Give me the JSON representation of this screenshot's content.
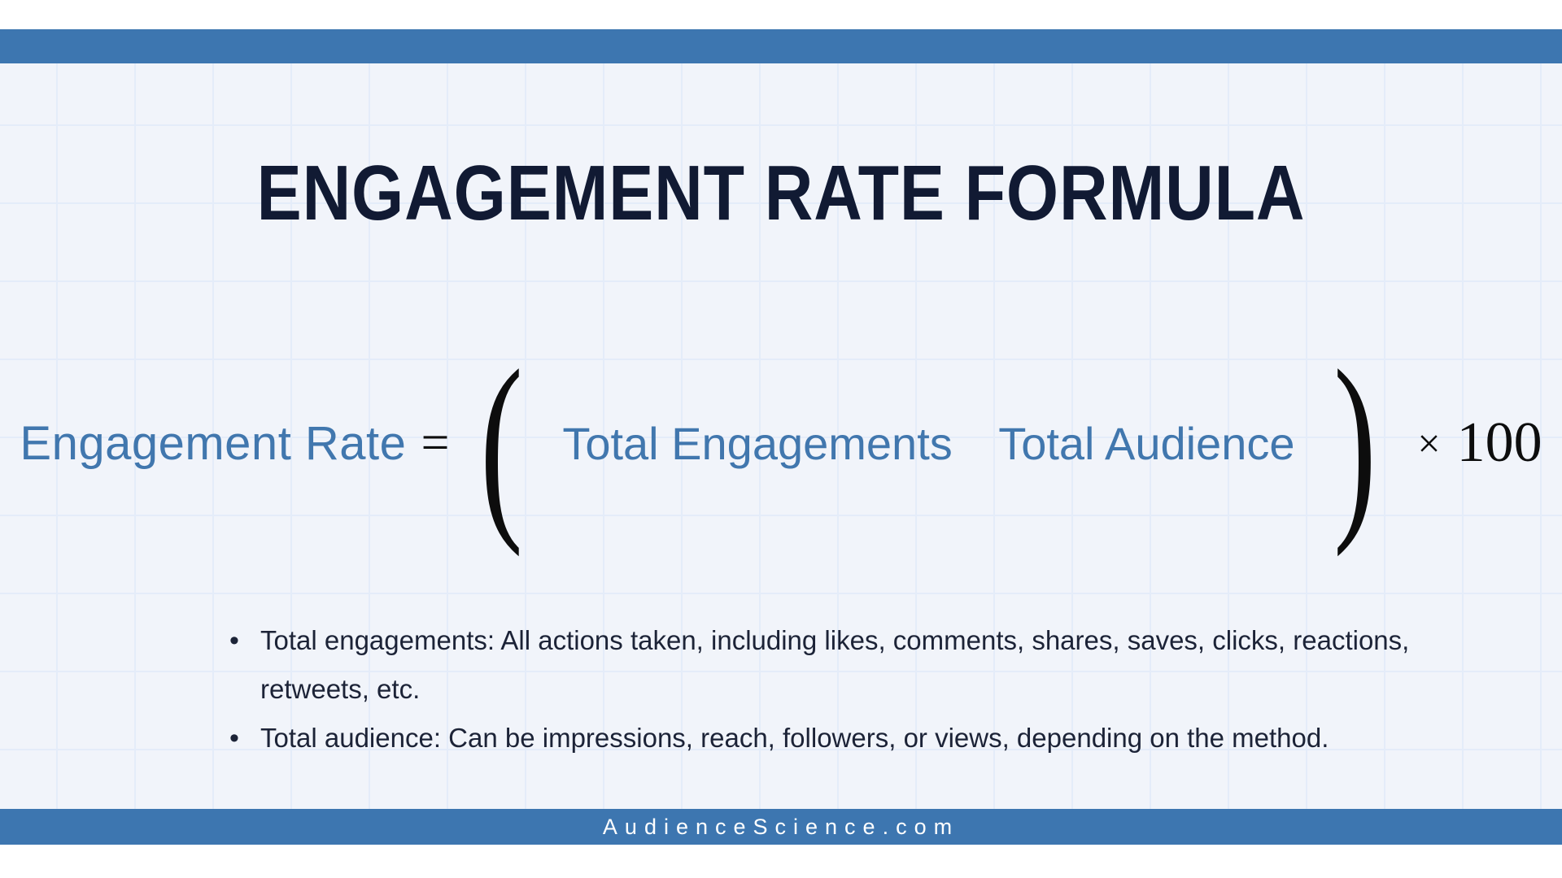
{
  "header": {
    "title": "ENGAGEMENT RATE FORMULA"
  },
  "formula": {
    "lhs": "Engagement Rate",
    "equals": "=",
    "open_paren": "(",
    "numerator": "Total Engagements",
    "denominator": "Total Audience",
    "close_paren": ")",
    "times": "×",
    "factor": "100"
  },
  "notes": {
    "bullet_glyph": "•",
    "bullets": [
      "Total engagements: All actions taken, including likes, comments, shares, saves, clicks, reactions, retweets, etc.",
      "Total audience: Can be impressions, reach, followers, or views, depending on the method."
    ]
  },
  "footer": {
    "site": "AudienceScience.com"
  },
  "colors": {
    "accent_blue": "#3d76b0",
    "formula_blue": "#4177ae",
    "title_navy": "#111a33",
    "body_text": "#1c2337",
    "canvas_bg": "#f1f4fa",
    "grid_line": "#e4ecf9"
  }
}
